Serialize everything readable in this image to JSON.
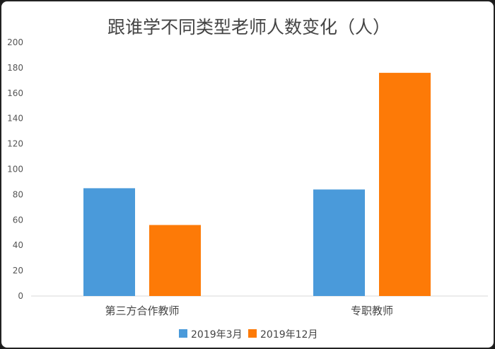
{
  "chart_data": {
    "type": "bar",
    "title": "跟谁学不同类型老师人数变化（人）",
    "categories": [
      "第三方合作教师",
      "专职教师"
    ],
    "series": [
      {
        "name": "2019年3月",
        "values": [
          85,
          84
        ],
        "color": "#4a9ada"
      },
      {
        "name": "2019年12月",
        "values": [
          56,
          176
        ],
        "color": "#fd7a07"
      }
    ],
    "ylim": [
      0,
      200
    ],
    "yticks": [
      0,
      20,
      40,
      60,
      80,
      100,
      120,
      140,
      160,
      180,
      200
    ],
    "grid": false,
    "legend_position": "bottom"
  }
}
